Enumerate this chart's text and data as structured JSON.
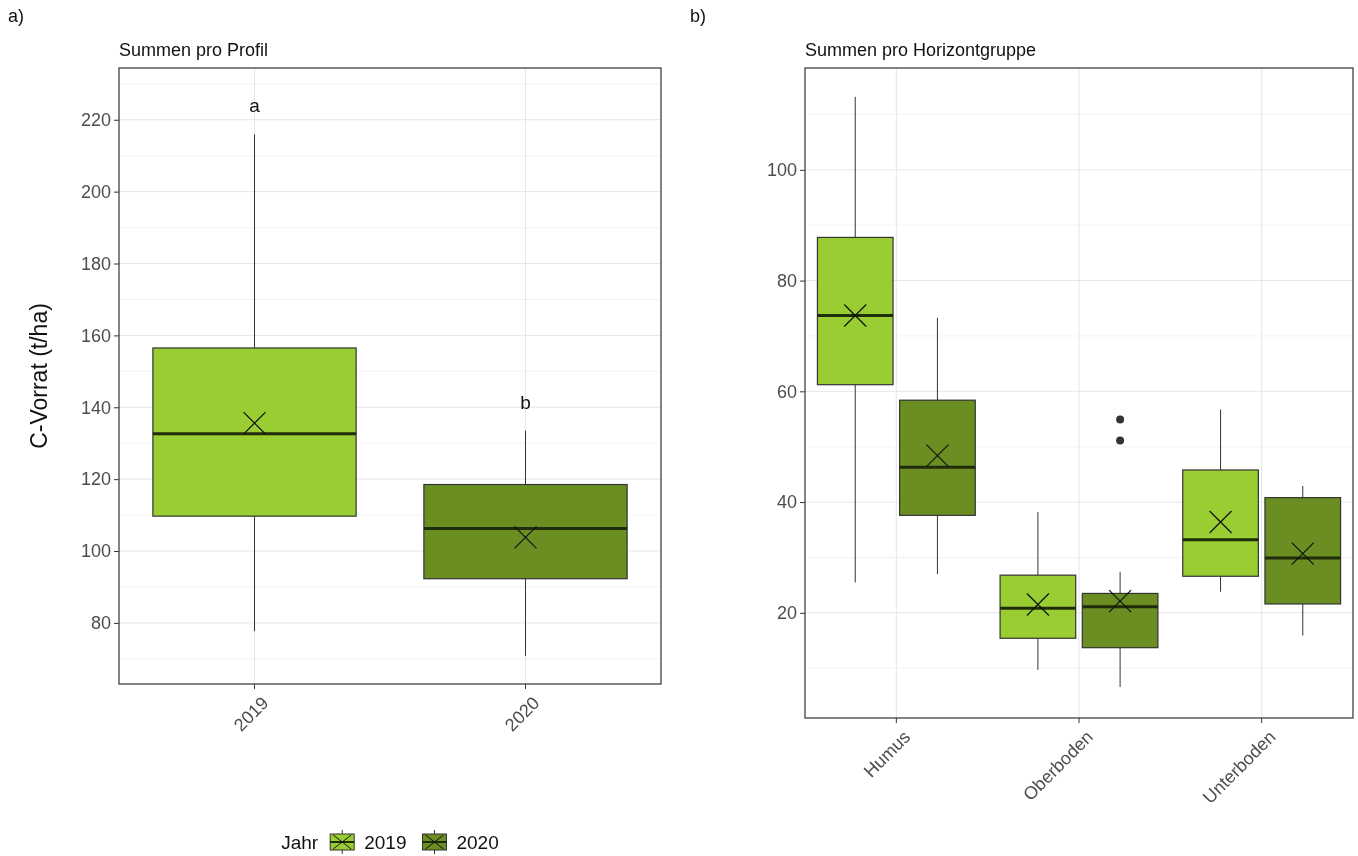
{
  "chart_data": [
    {
      "type": "box",
      "title": "Summen pro Profil",
      "ylabel": "C-Vorrat (t/ha)",
      "legend_title": "Jahr",
      "legend": "bottom",
      "grid": true,
      "categories": [
        "2019",
        "2020"
      ],
      "series": [
        {
          "name": "2019",
          "color": "#9acd32",
          "boxes": [
            {
              "low": 77.7,
              "q1": 109.7,
              "median": 132.6,
              "q3": 156.5,
              "high": 215.9,
              "mean": 135.6
            },
            null
          ]
        },
        {
          "name": "2020",
          "color": "#6b8e23",
          "boxes": [
            null,
            {
              "low": 70.8,
              "q1": 92.3,
              "median": 106.3,
              "q3": 118.5,
              "high": 133.5,
              "mean": 103.8
            }
          ]
        }
      ],
      "ylim": [
        63,
        234.4
      ],
      "yticks": [
        80,
        100,
        120,
        140,
        160,
        180,
        200,
        220
      ],
      "annotations": [
        "a)",
        "a",
        "b"
      ]
    },
    {
      "type": "box",
      "title": "Summen pro Horizontgruppe",
      "grid": true,
      "categories": [
        "Humus",
        "Oberboden",
        "Unterboden"
      ],
      "series": [
        {
          "color": "#9acd32",
          "boxes": [
            {
              "low": 25.5,
              "q1": 61.2,
              "median": 73.7,
              "q3": 87.8,
              "high": 113.2,
              "mean": 73.7
            },
            {
              "low": 9.7,
              "q1": 15.4,
              "median": 20.8,
              "q3": 26.8,
              "high": 38.2,
              "mean": 21.5
            },
            {
              "low": 23.8,
              "q1": 26.6,
              "median": 33.2,
              "q3": 45.8,
              "high": 56.7,
              "mean": 36.4
            }
          ]
        },
        {
          "color": "#6b8e23",
          "boxes": [
            {
              "low": 27,
              "q1": 37.6,
              "median": 46.3,
              "q3": 58.4,
              "high": 73.3,
              "mean": 48.4
            },
            {
              "low": 6.6,
              "q1": 13.7,
              "median": 21.1,
              "q3": 23.5,
              "high": 27.4,
              "mean": 22.1,
              "outliers": [
                54.9,
                51.1
              ]
            },
            {
              "low": 15.9,
              "q1": 21.6,
              "median": 29.9,
              "q3": 40.8,
              "high": 42.9,
              "mean": 30.7
            }
          ]
        }
      ],
      "ylim": [
        1,
        118.4
      ],
      "yticks": [
        20,
        40,
        60,
        80,
        100
      ],
      "annotations": [
        "b)"
      ]
    }
  ]
}
